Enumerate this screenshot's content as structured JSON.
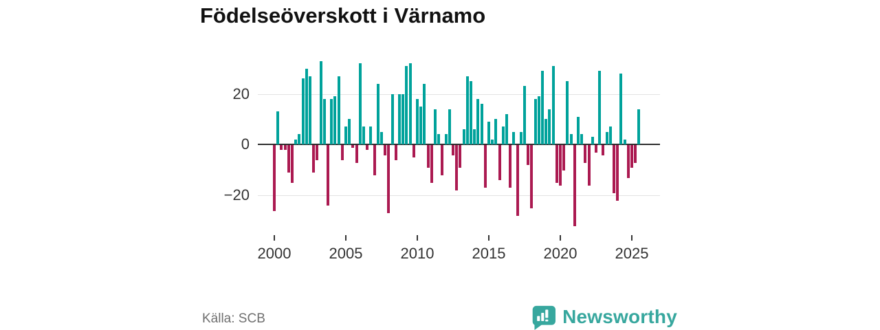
{
  "title": "Födelseöverskott i Värnamo",
  "source": "Källa: SCB",
  "brand": {
    "name": "Newsworthy",
    "color": "#37a79e",
    "icon": "newsworthy-bubble-chart-icon"
  },
  "colors": {
    "positive_bar": "#00a29b",
    "negative_bar": "#ab1a51",
    "zero_axis": "#2e2e2e",
    "gridline": "#e3e3e3",
    "tick_label": "#333333",
    "source_text": "#6f6f6f"
  },
  "chart_data": {
    "type": "bar",
    "period": "quarterly",
    "start": "2000 Q1",
    "end": "2025 Q3",
    "title": "Födelseöverskott i Värnamo",
    "xlabel": "",
    "ylabel": "",
    "ylim": [
      -35,
      35
    ],
    "yticks": [
      20,
      0,
      -20
    ],
    "ytick_labels": [
      "20",
      "0",
      "−20"
    ],
    "xticks": [
      2000,
      2005,
      2010,
      2015,
      2020,
      2025
    ],
    "grid": "horizontal gridlines at +20 and -20 only",
    "legend": "none",
    "series_note": "teal = positive quarterly birth surplus, crimson = negative",
    "values": [
      -26,
      13,
      -2,
      -2,
      -11,
      -15,
      2,
      4,
      26,
      30,
      27,
      -11,
      -6,
      33,
      18,
      -24,
      18,
      19,
      27,
      -6,
      7,
      10,
      -1,
      -7,
      32,
      7,
      -2,
      7,
      -12,
      24,
      5,
      -4,
      -27,
      20,
      -6,
      20,
      20,
      31,
      32,
      -5,
      18,
      15,
      24,
      -9,
      -15,
      14,
      4,
      -12,
      4,
      14,
      -4,
      -18,
      -9,
      6,
      27,
      25,
      6,
      18,
      16,
      -17,
      9,
      2,
      10,
      -14,
      7,
      12,
      -17,
      5,
      -28,
      5,
      23,
      -8,
      -25,
      18,
      19,
      29,
      10,
      14,
      31,
      -15,
      -16,
      -10,
      25,
      4,
      -32,
      11,
      4,
      -7,
      -16,
      3,
      -3,
      29,
      -4,
      5,
      7,
      -19,
      -22,
      28,
      2,
      -13,
      -9,
      -7,
      14
    ]
  }
}
